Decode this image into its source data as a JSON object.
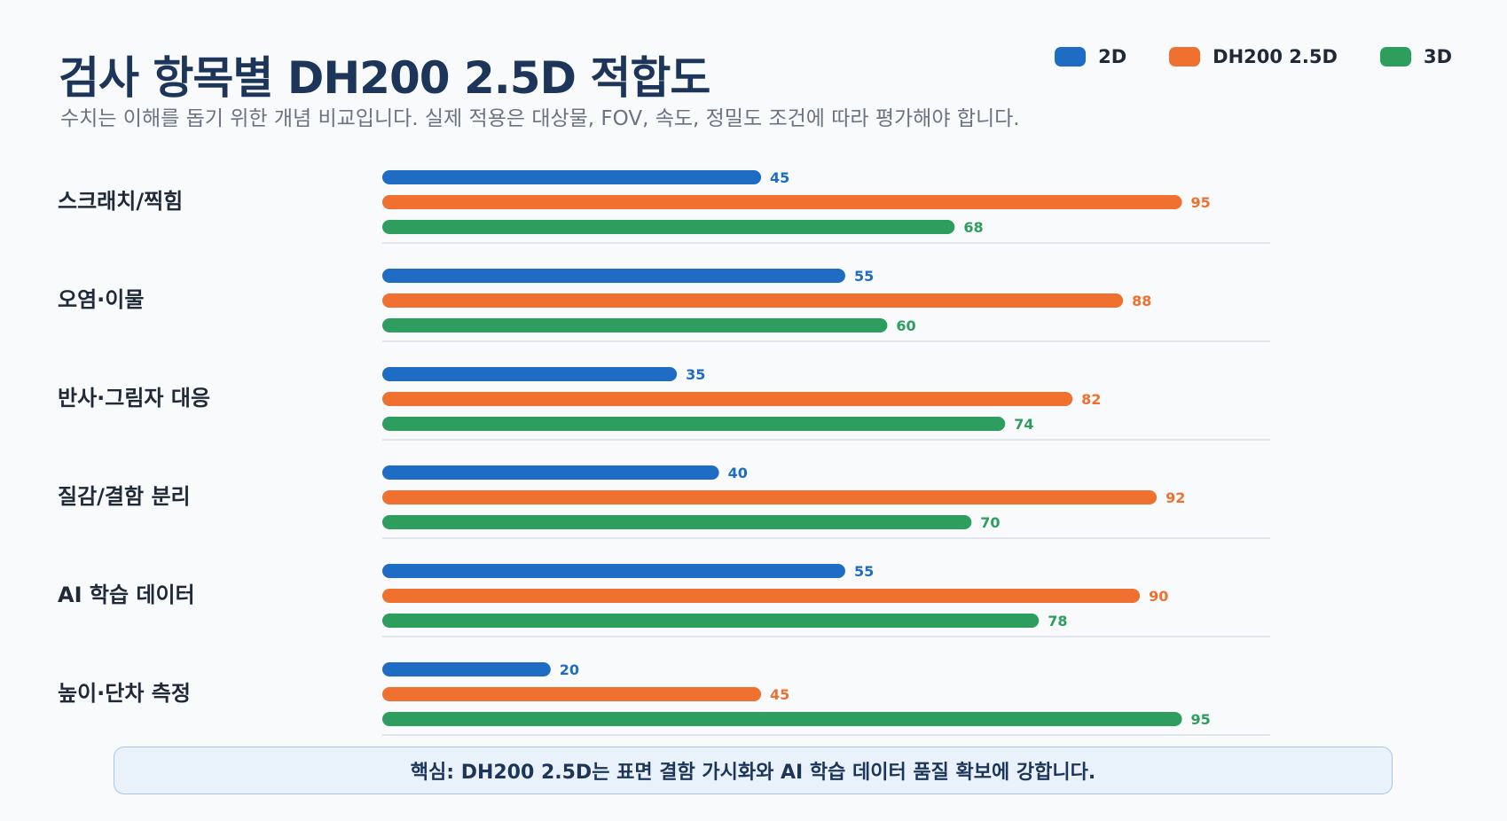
{
  "title": "검사 항목별 DH200 2.5D 적합도",
  "subtitle": "수치는 이해를 돕기 위한 개념 비교입니다. 실제 적용은 대상물, FOV, 속도, 정밀도 조건에 따라 평가해야 합니다.",
  "callout": "핵심: DH200 2.5D는 표면 결함 가시화와 AI 학습 데이터 품질 확보에 강합니다.",
  "colors": {
    "2d": "#1f6cc4",
    "dh200": "#f07030",
    "3d": "#2e9e5e"
  },
  "chart_data": {
    "type": "bar",
    "orientation": "horizontal",
    "categories": [
      "스크래치/찍힘",
      "오염·이물",
      "반사·그림자 대응",
      "질감/결함 분리",
      "AI 학습 데이터",
      "높이·단차 측정"
    ],
    "series": [
      {
        "name": "2D",
        "color_key": "2d",
        "values": [
          45,
          55,
          35,
          40,
          55,
          20
        ]
      },
      {
        "name": "DH200 2.5D",
        "color_key": "dh200",
        "values": [
          95,
          88,
          82,
          92,
          90,
          45
        ]
      },
      {
        "name": "3D",
        "color_key": "3d",
        "values": [
          68,
          60,
          74,
          70,
          78,
          95
        ]
      }
    ],
    "xlim": [
      0,
      100
    ],
    "legend": "top-right",
    "grid": false,
    "data_labels": true
  }
}
